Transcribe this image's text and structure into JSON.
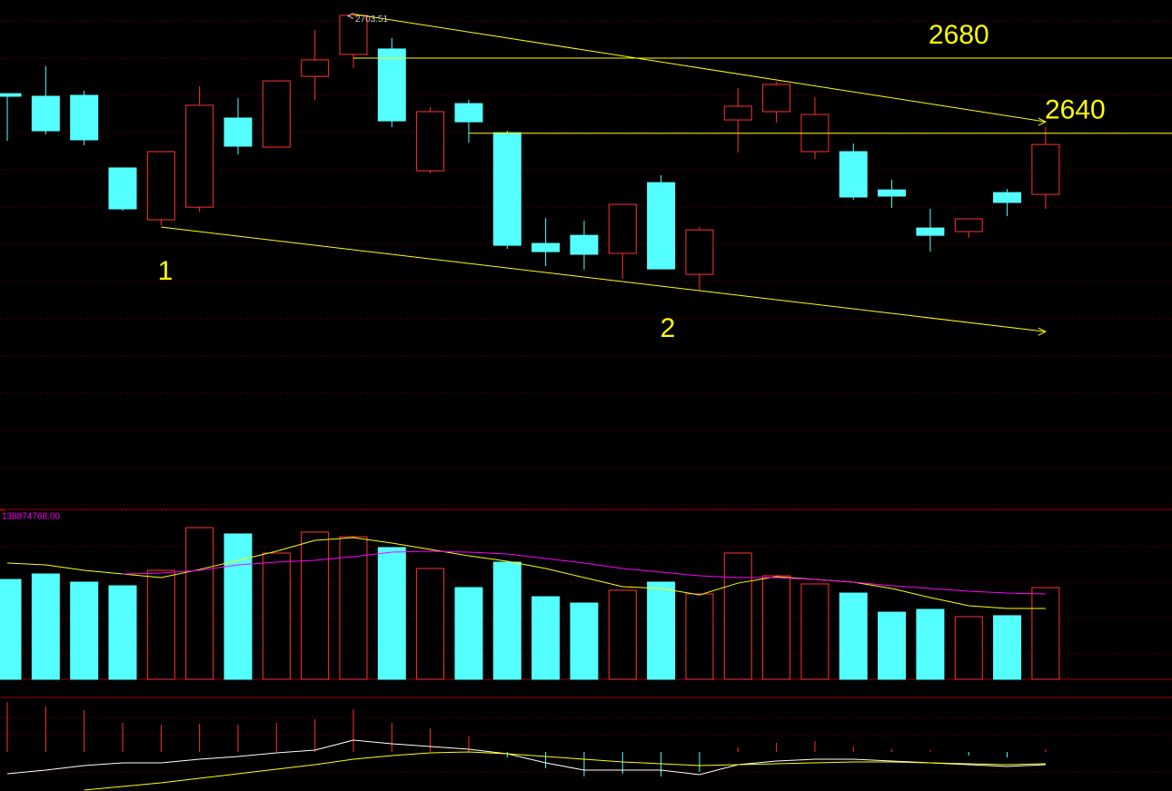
{
  "chart_data": {
    "type": "candlestick",
    "open": [
      2661.1,
      2659.7,
      2660.2,
      2621.5,
      2593.9,
      2600.6,
      2648.1,
      2632.6,
      2670.3,
      2682.0,
      2684.9,
      2620.0,
      2655.8,
      2640.3,
      2581.3,
      2585.6,
      2576.0,
      2613.7,
      2564.8,
      2647.1,
      2651.5,
      2630.2,
      2630.2,
      2609.8,
      2589.5,
      2587.6,
      2608.4,
      2607.4
    ],
    "high": [
      2661.1,
      2675.7,
      2662.6,
      2621.5,
      2630.2,
      2665.0,
      2658.7,
      2667.9,
      2695.0,
      2703.51,
      2690.7,
      2653.9,
      2657.8,
      2641.3,
      2594.8,
      2593.4,
      2602.1,
      2617.6,
      2590.0,
      2664.1,
      2667.4,
      2659.2,
      2634.5,
      2615.2,
      2599.7,
      2594.4,
      2610.3,
      2643.2
    ],
    "low": [
      2636.0,
      2639.4,
      2633.6,
      2598.7,
      2591.0,
      2598.2,
      2628.7,
      2632.6,
      2657.8,
      2674.7,
      2643.2,
      2618.6,
      2635.0,
      2578.4,
      2569.2,
      2567.3,
      2562.4,
      2567.7,
      2556.1,
      2629.7,
      2645.7,
      2626.3,
      2604.5,
      2600.2,
      2576.9,
      2584.2,
      2595.8,
      2599.7
    ],
    "close": [
      2659.7,
      2641.3,
      2636.5,
      2599.7,
      2630.2,
      2654.9,
      2633.1,
      2667.9,
      2679.1,
      2702.8,
      2646.6,
      2651.5,
      2646.1,
      2580.3,
      2576.9,
      2575.5,
      2602.1,
      2567.7,
      2588.5,
      2654.4,
      2666.0,
      2650.0,
      2606.0,
      2606.5,
      2585.6,
      2594.4,
      2603.1,
      2634.0
    ],
    "ylim": [
      2440,
      2711
    ],
    "up_color": "#ff3232",
    "down_color": "#54ffff",
    "levels": [
      2680,
      2640
    ],
    "level_color": "#ffff00",
    "trendlines": [
      [
        2703.51,
        2646.1
      ],
      [
        2590.0,
        2534.3
      ]
    ],
    "wave_labels": [
      "1",
      "2"
    ],
    "volume": {
      "values": [
        82100000,
        86600000,
        79900000,
        76900000,
        89600000,
        124700000,
        119500000,
        103800000,
        121000000,
        117200000,
        108300000,
        91100000,
        75400000,
        96300000,
        67900000,
        62700000,
        73200000,
        79900000,
        70200000,
        103800000,
        85100000,
        78400000,
        70900000,
        55200000,
        57500000,
        51500000,
        52300000,
        75400000
      ],
      "ylim": [
        0,
        138874768
      ],
      "yticks": [
        {
          "value": 138874768,
          "label": "138874768.00"
        }
      ],
      "ma": [
        {
          "color": "#ffff00",
          "values": [
            95600000,
            94100000,
            89600000,
            86600000,
            83600000,
            90300000,
            97800000,
            105300000,
            114200000,
            116500000,
            112000000,
            106800000,
            101500000,
            97100000,
            91100000,
            83600000,
            76200000,
            74700000,
            69400000,
            79100000,
            84400000,
            82100000,
            79900000,
            74700000,
            67200000,
            60500000,
            58200000,
            58200000
          ]
        },
        {
          "color": "#ff00ff",
          "values": [
            null,
            null,
            null,
            86600000,
            87400000,
            89600000,
            94100000,
            96300000,
            97800000,
            100800000,
            104500000,
            105300000,
            104500000,
            103000000,
            99300000,
            95600000,
            91100000,
            88100000,
            85100000,
            83600000,
            83600000,
            82100000,
            79900000,
            76900000,
            74700000,
            72400000,
            70900000,
            70200000
          ]
        }
      ]
    },
    "macd": {
      "histogram": [
        55,
        50,
        46,
        32,
        30,
        31,
        30,
        32,
        36,
        47,
        32,
        26,
        17,
        -6,
        -18,
        -27,
        -24,
        -27,
        -22,
        5,
        10,
        12,
        6,
        3,
        2,
        -4,
        -6,
        3
      ],
      "ylim": [
        -43,
        58
      ],
      "lines": [
        {
          "color": "#ffffff",
          "values": [
            -24,
            -20,
            -15,
            -12,
            -12,
            -8,
            -5,
            -1,
            2,
            13,
            9,
            6,
            3,
            -2,
            -12,
            -20,
            -20,
            -20,
            -25,
            -14,
            -10,
            -8,
            -8,
            -10,
            -12,
            -14,
            -16,
            -14
          ]
        },
        {
          "color": "#ffff00",
          "values": [
            null,
            null,
            -42,
            -38,
            -34,
            -29,
            -24,
            -19,
            -14,
            -8,
            -4,
            -1,
            0,
            -2,
            -5,
            -8,
            -11,
            -13,
            -15,
            -14,
            -13,
            -12,
            -11,
            -11,
            -12,
            -13,
            -14,
            -13
          ]
        }
      ]
    }
  }
}
